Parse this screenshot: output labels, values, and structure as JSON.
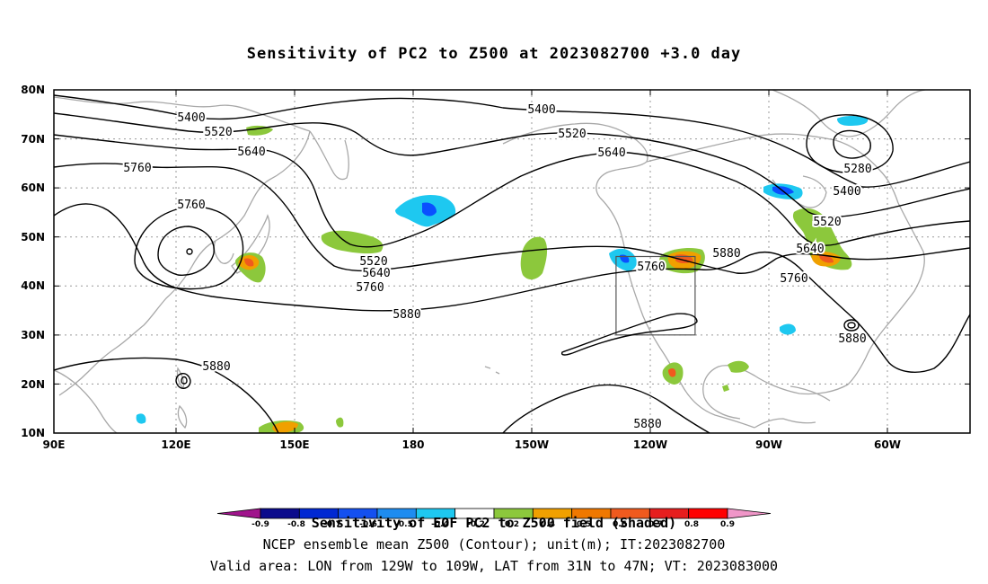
{
  "title": "Sensitivity of PC2 to Z500 at 2023082700 +3.0 day",
  "lat_labels": [
    "80N",
    "70N",
    "60N",
    "50N",
    "40N",
    "30N",
    "20N",
    "10N"
  ],
  "lon_labels": [
    "90E",
    "120E",
    "150E",
    "180",
    "150W",
    "120W",
    "90W",
    "60W"
  ],
  "contours": {
    "levels": [
      5280,
      5400,
      5520,
      5640,
      5760,
      5880
    ],
    "labels": [
      "5400",
      "5520",
      "5640",
      "5760",
      "5760",
      "5400",
      "5520",
      "5640",
      "5520",
      "5640",
      "5760",
      "5880",
      "5760",
      "5880",
      "5280",
      "5400",
      "5520",
      "5640",
      "5760",
      "5880",
      "5880",
      "5880"
    ]
  },
  "shading_colors": {
    "negative_strong": "#0a50ff",
    "negative_weak": "#1ec8f0",
    "positive_weak": "#8cc83c",
    "positive_mid": "#f0a000",
    "positive_strong": "#f05a1e"
  },
  "colorbar": {
    "ticks": [
      "-0.9",
      "-0.8",
      "-0.7",
      "-0.6",
      "-0.5",
      "-0.4",
      "-0.2",
      "0.2",
      "0.4",
      "0.5",
      "0.6",
      "0.7",
      "0.8",
      "0.9"
    ],
    "colors": [
      "#a0148c",
      "#0a0a8c",
      "#0028d2",
      "#1450f0",
      "#1e8cf0",
      "#1ec8f0",
      "#ffffff",
      "#8cc83c",
      "#f0a000",
      "#f07800",
      "#f05a1e",
      "#e61e1e",
      "#ff0000",
      "#f096c8"
    ]
  },
  "colorbar_caption": "Sensitivity of EOF PC2 to Z500 field (Shaded)",
  "footer_line_1": "NCEP ensemble mean Z500 (Contour); unit(m); IT:2023082700",
  "footer_line_2": "Valid area: LON from 129W to 109W, LAT from 31N to 47N; VT: 2023083000",
  "valid_area": {
    "lon_range": [
      "129W",
      "109W"
    ],
    "lat_range": [
      "31N",
      "47N"
    ]
  }
}
